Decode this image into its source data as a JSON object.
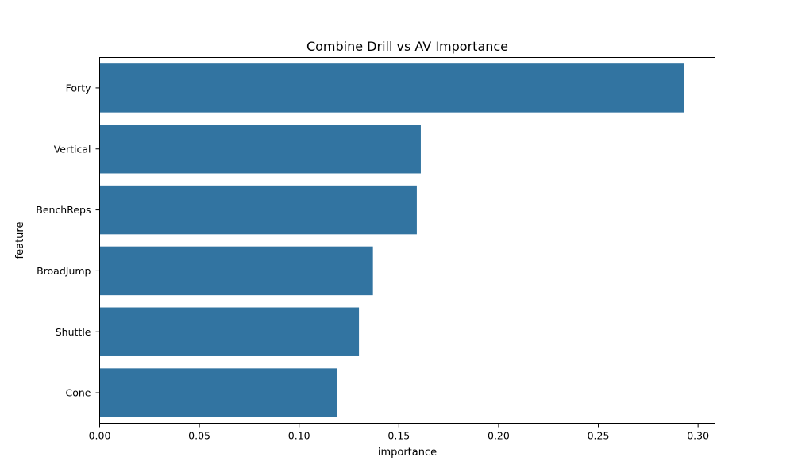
{
  "chart_data": {
    "type": "bar",
    "orientation": "horizontal",
    "title": "Combine Drill vs AV Importance",
    "xlabel": "importance",
    "ylabel": "feature",
    "categories": [
      "Forty",
      "Vertical",
      "BenchReps",
      "BroadJump",
      "Shuttle",
      "Cone"
    ],
    "values": [
      0.293,
      0.161,
      0.159,
      0.137,
      0.13,
      0.119
    ],
    "xlim": [
      0.0,
      0.3085
    ],
    "xticks": [
      0.0,
      0.05,
      0.1,
      0.15,
      0.2,
      0.25,
      0.3
    ],
    "xtick_labels": [
      "0.00",
      "0.05",
      "0.10",
      "0.15",
      "0.20",
      "0.25",
      "0.30"
    ],
    "grid": false,
    "bar_color": "#3274a1"
  }
}
